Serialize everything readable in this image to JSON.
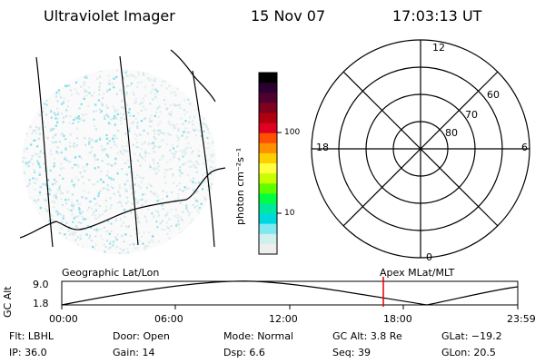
{
  "header": {
    "instrument": "Ultraviolet Imager",
    "date": "15 Nov 07",
    "time": "17:03:13 UT"
  },
  "colorbar": {
    "unit_label": "photon cm⁻²s⁻¹",
    "ticks": [
      "100",
      "10"
    ],
    "colors": [
      "#000000",
      "#2a0030",
      "#500030",
      "#800020",
      "#b00010",
      "#e00020",
      "#ff5000",
      "#ff9000",
      "#ffd000",
      "#ffff40",
      "#c8ff00",
      "#60ff00",
      "#00ff40",
      "#00e8a0",
      "#00d8e0",
      "#80e8f0",
      "#d0f0f0",
      "#eeeeee"
    ]
  },
  "polar": {
    "mlt_labels": {
      "top": "12",
      "left": "18",
      "right": "6",
      "bottom": "0"
    },
    "lat_labels": [
      "60",
      "70",
      "80"
    ]
  },
  "timeline": {
    "y_axis_label": "GC Alt",
    "y_ticks": [
      "9.0",
      "1.8"
    ],
    "left_caption": "Geographic Lat/Lon",
    "right_caption": "Apex  MLat/MLT",
    "x_ticks": [
      "00:00",
      "06:00",
      "12:00",
      "18:00",
      "23:59"
    ],
    "marker_color": "#dd0000"
  },
  "status": {
    "rows": [
      [
        {
          "k": "Flt:",
          "v": "LBHL"
        },
        {
          "k": "Door:",
          "v": "Open"
        },
        {
          "k": "Mode:",
          "v": "Normal"
        },
        {
          "k": "GC Alt:",
          "v": "3.8 Re"
        },
        {
          "k": "GLat:",
          "v": "−19.2"
        }
      ],
      [
        {
          "k": "IP:",
          "v": "36.0"
        },
        {
          "k": "Gain:",
          "v": "14"
        },
        {
          "k": "Dsp:",
          "v": "6.6"
        },
        {
          "k": "Seq:",
          "v": "39"
        },
        {
          "k": "GLon:",
          "v": "20.5"
        }
      ]
    ]
  }
}
